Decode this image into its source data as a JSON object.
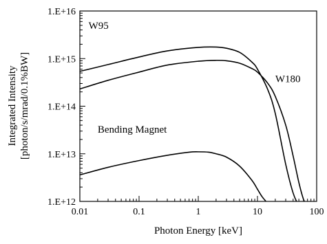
{
  "chart_data": {
    "type": "line",
    "title": "",
    "xlabel": "Photon Energy [keV]",
    "ylabel_lines": [
      "Integrated Intensity",
      "[photon/s/mrad/0.1%BW]"
    ],
    "x_scale": "log",
    "y_scale": "log",
    "xlim": [
      0.01,
      100
    ],
    "ylim": [
      1000000000000.0,
      1e+16
    ],
    "grid": false,
    "x_ticks": [
      {
        "value": 0.01,
        "label": "0.01"
      },
      {
        "value": 0.1,
        "label": "0.1"
      },
      {
        "value": 1,
        "label": "1"
      },
      {
        "value": 10,
        "label": "10"
      },
      {
        "value": 100,
        "label": "100"
      }
    ],
    "y_ticks": [
      {
        "value": 1000000000000.0,
        "label": "1.E+12"
      },
      {
        "value": 10000000000000.0,
        "label": "1.E+13"
      },
      {
        "value": 100000000000000.0,
        "label": "1.E+14"
      },
      {
        "value": 1000000000000000.0,
        "label": "1.E+15"
      },
      {
        "value": 1e+16,
        "label": "1.E+16"
      }
    ],
    "series": [
      {
        "name": "W95",
        "label_at": [
          0.014,
          4200000000000000.0
        ],
        "x": [
          0.01,
          0.03,
          0.1,
          0.3,
          1,
          2,
          3,
          5,
          8,
          10,
          15,
          20,
          30,
          40,
          50
        ],
        "y": [
          540000000000000.0,
          750000000000000.0,
          1080000000000000.0,
          1450000000000000.0,
          1720000000000000.0,
          1750000000000000.0,
          1650000000000000.0,
          1350000000000000.0,
          850000000000000.0,
          600000000000000.0,
          220000000000000.0,
          70000000000000.0,
          6000000000000.0,
          1500000000000.0,
          800000000000.0
        ]
      },
      {
        "name": "W180",
        "label_at": [
          20,
          320000000000000.0
        ],
        "x": [
          0.01,
          0.03,
          0.1,
          0.3,
          1,
          2,
          3,
          5,
          8,
          10,
          15,
          20,
          30,
          40,
          50,
          60,
          70
        ],
        "y": [
          230000000000000.0,
          350000000000000.0,
          520000000000000.0,
          730000000000000.0,
          880000000000000.0,
          920000000000000.0,
          900000000000000.0,
          800000000000000.0,
          620000000000000.0,
          520000000000000.0,
          300000000000000.0,
          160000000000000.0,
          40000000000000.0,
          9000000000000.0,
          2500000000000.0,
          1100000000000.0,
          800000000000.0
        ]
      },
      {
        "name": "Bending Magnet",
        "label_at": [
          0.02,
          28000000000000.0
        ],
        "x": [
          0.01,
          0.03,
          0.1,
          0.3,
          0.7,
          1,
          1.5,
          2,
          3,
          5,
          8,
          10,
          12,
          15,
          17
        ],
        "y": [
          3600000000000.0,
          5200000000000.0,
          7200000000000.0,
          9300000000000.0,
          10800000000000.0,
          11000000000000.0,
          10800000000000.0,
          10000000000000.0,
          8500000000000.0,
          5500000000000.0,
          2800000000000.0,
          1800000000000.0,
          1250000000000.0,
          900000000000.0,
          750000000000.0
        ]
      }
    ]
  }
}
